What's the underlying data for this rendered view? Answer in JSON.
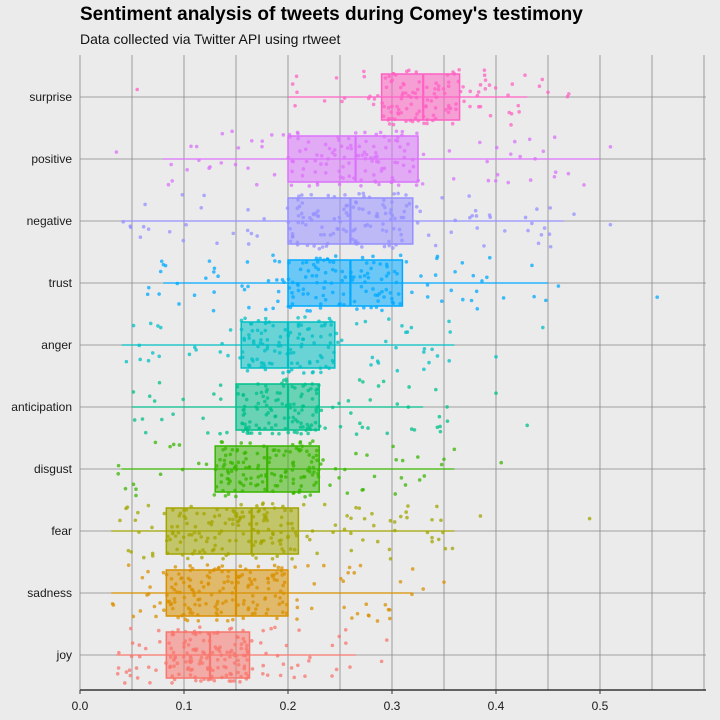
{
  "chart_data": {
    "type": "boxplot",
    "title": "Sentiment analysis of tweets during Comey's testimony",
    "subtitle": "Data collected via Twitter API using rtweet",
    "xlabel": "",
    "ylabel": "",
    "xlim": [
      0,
      0.6
    ],
    "x_ticks": [
      "0.0",
      "0.1",
      "0.2",
      "0.3",
      "0.4",
      "0.5"
    ],
    "grid": true,
    "legend": "none",
    "categories": [
      "surprise",
      "positive",
      "negative",
      "trust",
      "anger",
      "anticipation",
      "disgust",
      "fear",
      "sadness",
      "joy"
    ],
    "colors": [
      "#ff61c3",
      "#db72fb",
      "#9590ff",
      "#00a9ff",
      "#00bfc4",
      "#00c08b",
      "#39b600",
      "#a3a500",
      "#d89000",
      "#f8766d"
    ],
    "series": [
      {
        "category": "surprise",
        "min": 0.2,
        "q1": 0.29,
        "median": 0.33,
        "q3": 0.365,
        "max": 0.43,
        "n_points": 130,
        "spread": [
          0.2,
          0.47
        ],
        "outliers": [
          0.055,
          0.45,
          0.47
        ]
      },
      {
        "category": "positive",
        "min": 0.08,
        "q1": 0.2,
        "median": 0.265,
        "q3": 0.325,
        "max": 0.5,
        "n_points": 150,
        "spread": [
          0.08,
          0.5
        ],
        "outliers": [
          0.035,
          0.51
        ]
      },
      {
        "category": "negative",
        "min": 0.04,
        "q1": 0.2,
        "median": 0.26,
        "q3": 0.32,
        "max": 0.465,
        "n_points": 160,
        "spread": [
          0.04,
          0.465
        ],
        "outliers": [
          0.475,
          0.51
        ]
      },
      {
        "category": "trust",
        "min": 0.08,
        "q1": 0.2,
        "median": 0.26,
        "q3": 0.31,
        "max": 0.45,
        "n_points": 160,
        "spread": [
          0.05,
          0.45
        ],
        "outliers": [
          0.555,
          0.46
        ]
      },
      {
        "category": "anger",
        "min": 0.04,
        "q1": 0.155,
        "median": 0.2,
        "q3": 0.245,
        "max": 0.36,
        "n_points": 150,
        "spread": [
          0.04,
          0.36
        ],
        "outliers": [
          0.4,
          0.445
        ]
      },
      {
        "category": "anticipation",
        "min": 0.05,
        "q1": 0.15,
        "median": 0.2,
        "q3": 0.23,
        "max": 0.33,
        "n_points": 160,
        "spread": [
          0.05,
          0.36
        ],
        "outliers": [
          0.4,
          0.43
        ]
      },
      {
        "category": "disgust",
        "min": 0.04,
        "q1": 0.13,
        "median": 0.18,
        "q3": 0.23,
        "max": 0.36,
        "n_points": 170,
        "spread": [
          0.035,
          0.36
        ],
        "outliers": [
          0.405
        ]
      },
      {
        "category": "fear",
        "min": 0.03,
        "q1": 0.083,
        "median": 0.165,
        "q3": 0.21,
        "max": 0.36,
        "n_points": 190,
        "spread": [
          0.03,
          0.36
        ],
        "outliers": [
          0.385,
          0.49
        ]
      },
      {
        "category": "sadness",
        "min": 0.03,
        "q1": 0.083,
        "median": 0.15,
        "q3": 0.2,
        "max": 0.32,
        "n_points": 190,
        "spread": [
          0.03,
          0.32
        ],
        "outliers": [
          0.33,
          0.35
        ]
      },
      {
        "category": "joy",
        "min": 0.035,
        "q1": 0.083,
        "median": 0.125,
        "q3": 0.163,
        "max": 0.265,
        "n_points": 180,
        "spread": [
          0.035,
          0.27
        ],
        "outliers": [
          0.29,
          0.295
        ]
      }
    ]
  }
}
